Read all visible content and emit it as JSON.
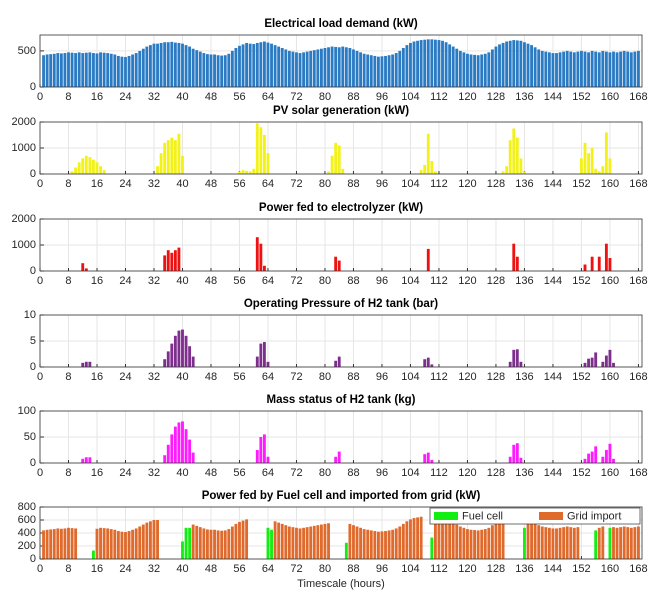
{
  "chart_data": [
    {
      "type": "bar",
      "title": "Electrical load demand (kW)",
      "color": "#2b7bc4",
      "grid": true,
      "xlim": [
        0,
        169
      ],
      "xticks": [
        0,
        8,
        16,
        24,
        32,
        40,
        48,
        56,
        64,
        72,
        80,
        88,
        96,
        104,
        112,
        120,
        128,
        136,
        144,
        152,
        160,
        168
      ],
      "ylim": [
        0,
        720
      ],
      "yticks": [
        0,
        500
      ],
      "x": [
        1,
        2,
        3,
        4,
        5,
        6,
        7,
        8,
        9,
        10,
        11,
        12,
        13,
        14,
        15,
        16,
        17,
        18,
        19,
        20,
        21,
        22,
        23,
        24,
        25,
        26,
        27,
        28,
        29,
        30,
        31,
        32,
        33,
        34,
        35,
        36,
        37,
        38,
        39,
        40,
        41,
        42,
        43,
        44,
        45,
        46,
        47,
        48,
        49,
        50,
        51,
        52,
        53,
        54,
        55,
        56,
        57,
        58,
        59,
        60,
        61,
        62,
        63,
        64,
        65,
        66,
        67,
        68,
        69,
        70,
        71,
        72,
        73,
        74,
        75,
        76,
        77,
        78,
        79,
        80,
        81,
        82,
        83,
        84,
        85,
        86,
        87,
        88,
        89,
        90,
        91,
        92,
        93,
        94,
        95,
        96,
        97,
        98,
        99,
        100,
        101,
        102,
        103,
        104,
        105,
        106,
        107,
        108,
        109,
        110,
        111,
        112,
        113,
        114,
        115,
        116,
        117,
        118,
        119,
        120,
        121,
        122,
        123,
        124,
        125,
        126,
        127,
        128,
        129,
        130,
        131,
        132,
        133,
        134,
        135,
        136,
        137,
        138,
        139,
        140,
        141,
        142,
        143,
        144,
        145,
        146,
        147,
        148,
        149,
        150,
        151,
        152,
        153,
        154,
        155,
        156,
        157,
        158,
        159,
        160,
        161,
        162,
        163,
        164,
        165,
        166,
        167,
        168
      ],
      "values": [
        440,
        450,
        455,
        460,
        470,
        465,
        470,
        480,
        475,
        470,
        480,
        470,
        475,
        480,
        470,
        465,
        480,
        475,
        470,
        460,
        450,
        430,
        420,
        415,
        430,
        450,
        470,
        500,
        530,
        560,
        580,
        600,
        600,
        610,
        620,
        620,
        625,
        615,
        610,
        600,
        580,
        560,
        530,
        510,
        490,
        470,
        455,
        450,
        450,
        440,
        435,
        440,
        460,
        500,
        540,
        570,
        590,
        610,
        600,
        595,
        610,
        620,
        630,
        615,
        600,
        580,
        560,
        540,
        520,
        500,
        490,
        480,
        470,
        480,
        490,
        500,
        510,
        520,
        530,
        540,
        550,
        560,
        555,
        550,
        560,
        550,
        540,
        520,
        500,
        480,
        460,
        450,
        440,
        430,
        420,
        425,
        430,
        440,
        450,
        470,
        500,
        540,
        580,
        610,
        630,
        640,
        650,
        655,
        660,
        660,
        655,
        650,
        640,
        620,
        590,
        560,
        530,
        500,
        480,
        460,
        450,
        445,
        440,
        450,
        460,
        480,
        520,
        560,
        590,
        610,
        630,
        640,
        650,
        645,
        640,
        620,
        600,
        580,
        550,
        520,
        500,
        490,
        480,
        470,
        470,
        480,
        490,
        500,
        490,
        480,
        490,
        500,
        490,
        480,
        500,
        490,
        480,
        500,
        490,
        480,
        490,
        480,
        490,
        500,
        490,
        480,
        490,
        500
      ]
    },
    {
      "type": "bar",
      "title": "PV solar generation (kW)",
      "color": "#f2f21a",
      "grid": true,
      "xlim": [
        0,
        169
      ],
      "xticks": [
        0,
        8,
        16,
        24,
        32,
        40,
        48,
        56,
        64,
        72,
        80,
        88,
        96,
        104,
        112,
        120,
        128,
        136,
        144,
        152,
        160,
        168
      ],
      "ylim": [
        0,
        2000
      ],
      "yticks": [
        0,
        1000,
        2000
      ],
      "x": [
        9,
        10,
        11,
        12,
        13,
        14,
        15,
        16,
        17,
        18,
        33,
        34,
        35,
        36,
        37,
        38,
        39,
        40,
        56,
        57,
        58,
        59,
        60,
        61,
        62,
        63,
        64,
        81,
        82,
        83,
        84,
        85,
        107,
        108,
        109,
        110,
        111,
        130,
        131,
        132,
        133,
        134,
        135,
        136,
        152,
        153,
        154,
        155,
        156,
        157,
        158,
        159,
        160
      ],
      "values": [
        100,
        250,
        450,
        600,
        700,
        650,
        550,
        450,
        300,
        150,
        300,
        800,
        1200,
        1300,
        1400,
        1300,
        1550,
        700,
        100,
        150,
        120,
        100,
        200,
        1950,
        1800,
        1500,
        800,
        100,
        700,
        1200,
        1100,
        200,
        150,
        350,
        1550,
        500,
        100,
        100,
        300,
        1300,
        1750,
        1400,
        600,
        100,
        600,
        1200,
        800,
        1000,
        200,
        100,
        300,
        1600,
        600
      ]
    },
    {
      "type": "bar",
      "title": "Power fed to electrolyzer (kW)",
      "color": "#ee1111",
      "grid": true,
      "xlim": [
        0,
        169
      ],
      "xticks": [
        0,
        8,
        16,
        24,
        32,
        40,
        48,
        56,
        64,
        72,
        80,
        88,
        96,
        104,
        112,
        120,
        128,
        136,
        144,
        152,
        160,
        168
      ],
      "ylim": [
        0,
        2000
      ],
      "yticks": [
        0,
        1000,
        2000
      ],
      "x": [
        12,
        13,
        35,
        36,
        37,
        38,
        39,
        61,
        62,
        63,
        83,
        84,
        109,
        133,
        134,
        153,
        155,
        157,
        159,
        160
      ],
      "values": [
        300,
        100,
        600,
        800,
        700,
        800,
        900,
        1300,
        1050,
        200,
        550,
        400,
        850,
        1050,
        550,
        250,
        550,
        550,
        1050,
        500
      ]
    },
    {
      "type": "bar",
      "title": "Operating Pressure of H2 tank (bar)",
      "color": "#7e2f8e",
      "grid": true,
      "xlim": [
        0,
        169
      ],
      "xticks": [
        0,
        8,
        16,
        24,
        32,
        40,
        48,
        56,
        64,
        72,
        80,
        88,
        96,
        104,
        112,
        120,
        128,
        136,
        144,
        152,
        160,
        168
      ],
      "ylim": [
        0,
        10
      ],
      "yticks": [
        0,
        5,
        10
      ],
      "x": [
        12,
        13,
        14,
        35,
        36,
        37,
        38,
        39,
        40,
        41,
        42,
        43,
        61,
        62,
        63,
        64,
        83,
        84,
        108,
        109,
        110,
        132,
        133,
        134,
        135,
        153,
        154,
        155,
        156,
        158,
        159,
        160,
        161
      ],
      "values": [
        0.8,
        1,
        1,
        1.5,
        3,
        4.5,
        6,
        7,
        7.2,
        6,
        4,
        2,
        2,
        4.5,
        4.8,
        1,
        1.2,
        2,
        1.5,
        1.8,
        0.5,
        1,
        3.3,
        3.4,
        1,
        0.8,
        1.6,
        1.8,
        2.8,
        1,
        2.2,
        3.3,
        0.8
      ]
    },
    {
      "type": "bar",
      "title": "Mass status of H2 tank (kg)",
      "color": "#ff1aff",
      "grid": true,
      "xlim": [
        0,
        169
      ],
      "xticks": [
        0,
        8,
        16,
        24,
        32,
        40,
        48,
        56,
        64,
        72,
        80,
        88,
        96,
        104,
        112,
        120,
        128,
        136,
        144,
        152,
        160,
        168
      ],
      "ylim": [
        0,
        100
      ],
      "yticks": [
        0,
        50,
        100
      ],
      "x": [
        12,
        13,
        14,
        35,
        36,
        37,
        38,
        39,
        40,
        41,
        42,
        43,
        61,
        62,
        63,
        64,
        83,
        84,
        108,
        109,
        110,
        132,
        133,
        134,
        135,
        153,
        154,
        155,
        156,
        158,
        159,
        160,
        161
      ],
      "values": [
        8,
        11,
        11,
        15,
        35,
        55,
        70,
        78,
        80,
        65,
        45,
        20,
        25,
        50,
        55,
        12,
        12,
        22,
        17,
        20,
        6,
        12,
        35,
        38,
        10,
        8,
        18,
        22,
        32,
        12,
        25,
        37,
        8
      ]
    },
    {
      "type": "bar",
      "stacked": true,
      "title": "Power fed by Fuel cell and imported from grid (kW)",
      "xlabel": "Timescale (hours)",
      "grid": true,
      "legend": "top-right",
      "xlim": [
        0,
        169
      ],
      "xticks": [
        0,
        8,
        16,
        24,
        32,
        40,
        48,
        56,
        64,
        72,
        80,
        88,
        96,
        104,
        112,
        120,
        128,
        136,
        144,
        152,
        160,
        168
      ],
      "ylim": [
        0,
        800
      ],
      "yticks": [
        0,
        200,
        400,
        600,
        800
      ],
      "x": [
        1,
        2,
        3,
        4,
        5,
        6,
        7,
        8,
        9,
        10,
        11,
        12,
        13,
        14,
        15,
        16,
        17,
        18,
        19,
        20,
        21,
        22,
        23,
        24,
        25,
        26,
        27,
        28,
        29,
        30,
        31,
        32,
        33,
        34,
        35,
        36,
        37,
        38,
        39,
        40,
        41,
        42,
        43,
        44,
        45,
        46,
        47,
        48,
        49,
        50,
        51,
        52,
        53,
        54,
        55,
        56,
        57,
        58,
        59,
        60,
        61,
        62,
        63,
        64,
        65,
        66,
        67,
        68,
        69,
        70,
        71,
        72,
        73,
        74,
        75,
        76,
        77,
        78,
        79,
        80,
        81,
        82,
        83,
        84,
        85,
        86,
        87,
        88,
        89,
        90,
        91,
        92,
        93,
        94,
        95,
        96,
        97,
        98,
        99,
        100,
        101,
        102,
        103,
        104,
        105,
        106,
        107,
        108,
        109,
        110,
        111,
        112,
        113,
        114,
        115,
        116,
        117,
        118,
        119,
        120,
        121,
        122,
        123,
        124,
        125,
        126,
        127,
        128,
        129,
        130,
        131,
        132,
        133,
        134,
        135,
        136,
        137,
        138,
        139,
        140,
        141,
        142,
        143,
        144,
        145,
        146,
        147,
        148,
        149,
        150,
        151,
        152,
        153,
        154,
        155,
        156,
        157,
        158,
        159,
        160,
        161,
        162,
        163,
        164,
        165,
        166,
        167,
        168
      ],
      "series": [
        {
          "name": "Fuel cell",
          "color": "#11ee11",
          "values": [
            0,
            0,
            0,
            0,
            0,
            0,
            0,
            0,
            0,
            0,
            0,
            0,
            0,
            0,
            130,
            0,
            0,
            0,
            0,
            0,
            0,
            0,
            0,
            0,
            0,
            0,
            0,
            0,
            0,
            0,
            0,
            0,
            0,
            0,
            0,
            0,
            0,
            0,
            0,
            270,
            480,
            480,
            0,
            0,
            0,
            0,
            0,
            0,
            0,
            0,
            0,
            0,
            0,
            0,
            0,
            0,
            0,
            0,
            0,
            0,
            0,
            0,
            0,
            480,
            450,
            0,
            0,
            0,
            0,
            0,
            0,
            0,
            0,
            0,
            0,
            0,
            0,
            0,
            0,
            0,
            0,
            0,
            0,
            0,
            0,
            250,
            0,
            0,
            0,
            0,
            0,
            0,
            0,
            0,
            0,
            0,
            0,
            0,
            0,
            0,
            0,
            0,
            0,
            0,
            0,
            0,
            0,
            0,
            0,
            330,
            0,
            0,
            0,
            0,
            0,
            0,
            0,
            0,
            0,
            0,
            0,
            0,
            0,
            0,
            0,
            0,
            0,
            0,
            0,
            0,
            0,
            0,
            0,
            0,
            0,
            480,
            0,
            0,
            0,
            0,
            0,
            0,
            0,
            0,
            0,
            0,
            0,
            0,
            0,
            0,
            0,
            0,
            0,
            0,
            0,
            440,
            0,
            0,
            0,
            480,
            0,
            0,
            0,
            0,
            0,
            0,
            0,
            0
          ]
        },
        {
          "name": "Grid import",
          "color": "#e06a2c",
          "values": [
            440,
            450,
            455,
            460,
            470,
            465,
            470,
            480,
            475,
            470,
            0,
            0,
            0,
            0,
            0,
            465,
            480,
            475,
            470,
            460,
            450,
            430,
            420,
            415,
            430,
            450,
            470,
            500,
            530,
            560,
            580,
            600,
            600,
            0,
            0,
            0,
            0,
            0,
            0,
            0,
            0,
            0,
            530,
            510,
            490,
            470,
            455,
            450,
            450,
            440,
            435,
            440,
            460,
            500,
            540,
            570,
            590,
            610,
            0,
            0,
            0,
            0,
            0,
            0,
            0,
            580,
            560,
            540,
            520,
            500,
            490,
            480,
            470,
            480,
            490,
            500,
            510,
            520,
            530,
            540,
            550,
            0,
            0,
            0,
            0,
            0,
            540,
            520,
            500,
            480,
            460,
            450,
            440,
            430,
            420,
            425,
            430,
            440,
            450,
            470,
            500,
            540,
            580,
            610,
            630,
            640,
            650,
            0,
            0,
            0,
            655,
            650,
            640,
            620,
            590,
            560,
            530,
            500,
            480,
            460,
            450,
            445,
            440,
            450,
            460,
            480,
            520,
            560,
            590,
            610,
            0,
            0,
            0,
            0,
            0,
            0,
            600,
            580,
            550,
            520,
            500,
            490,
            480,
            470,
            470,
            480,
            490,
            500,
            490,
            480,
            490,
            0,
            0,
            0,
            0,
            0,
            480,
            500,
            0,
            0,
            490,
            480,
            490,
            500,
            490,
            480,
            490,
            500
          ]
        }
      ]
    }
  ]
}
